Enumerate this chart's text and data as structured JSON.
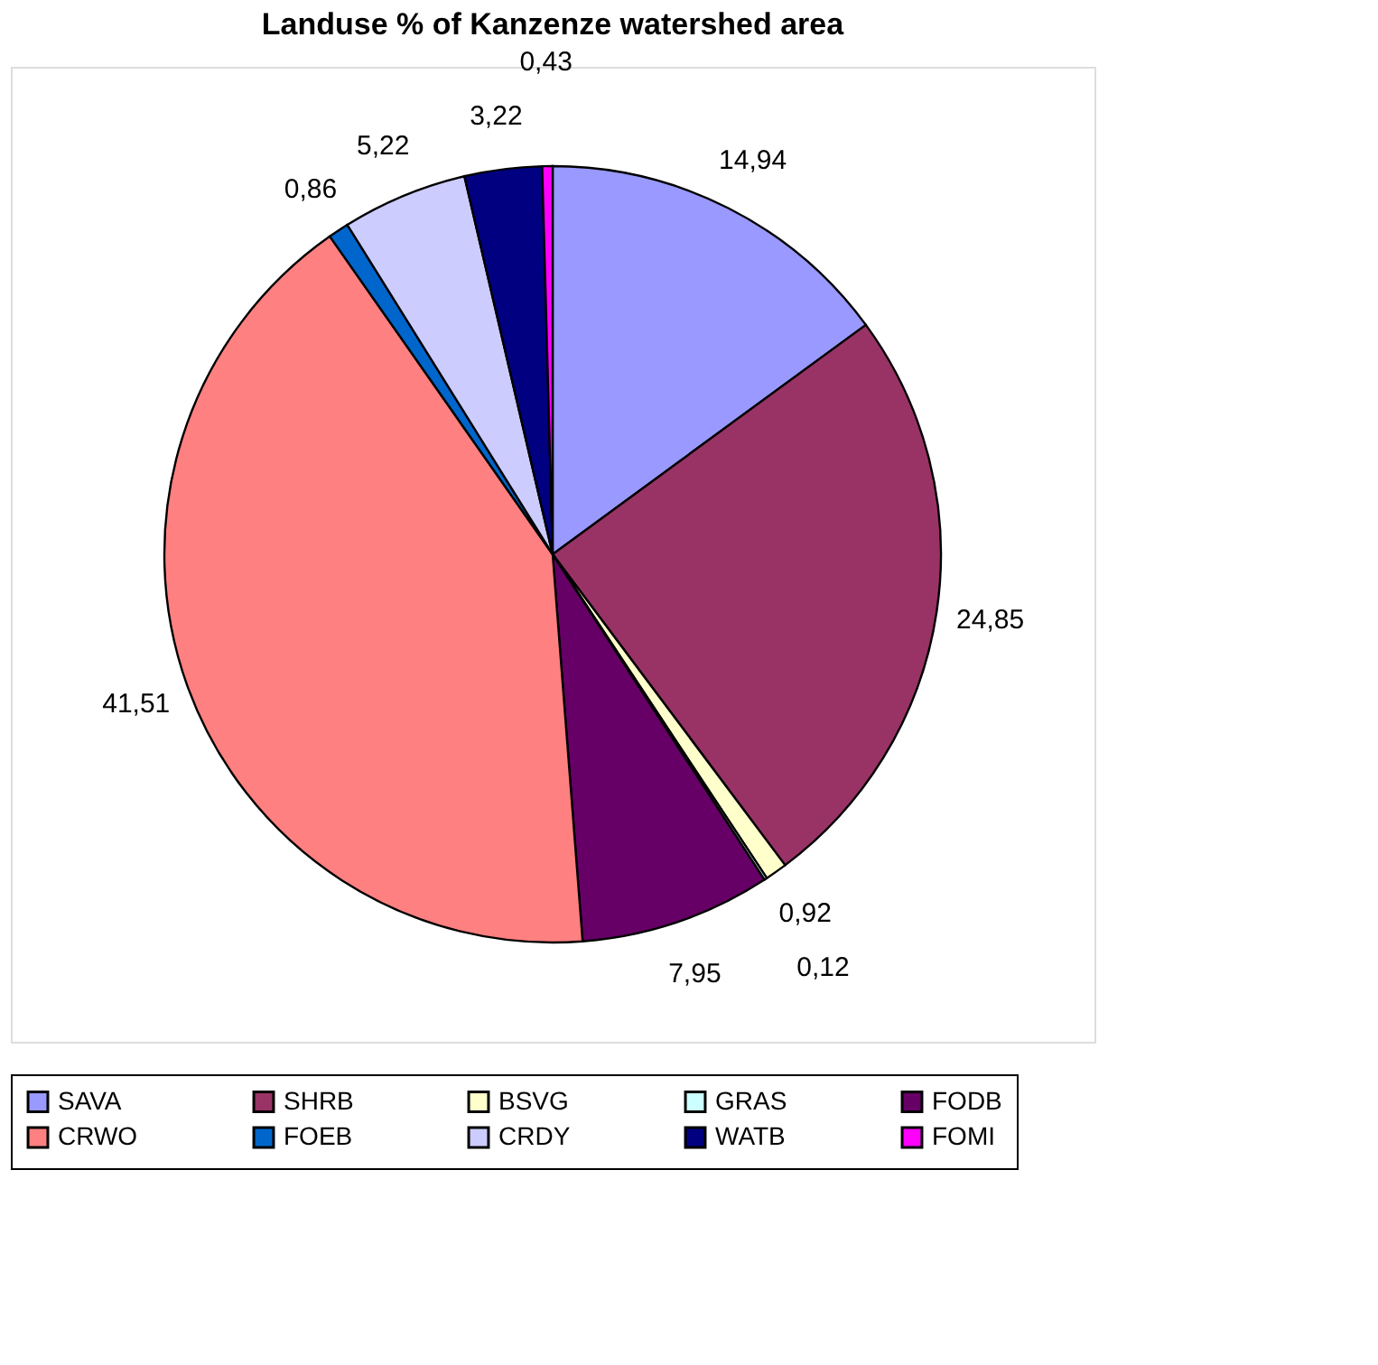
{
  "chart_data": {
    "type": "pie",
    "title": "Landuse % of Kanzenze watershed area",
    "categories": [
      "SAVA",
      "SHRB",
      "BSVG",
      "GRAS",
      "FODB",
      "CRWO",
      "FOEB",
      "CRDY",
      "WATB",
      "FOMI"
    ],
    "values": [
      14.94,
      24.85,
      0.92,
      0.12,
      7.95,
      41.51,
      0.86,
      5.22,
      3.22,
      0.43
    ],
    "colors": [
      "#9999ff",
      "#993366",
      "#ffffcc",
      "#ccffff",
      "#660066",
      "#ff8080",
      "#0066cc",
      "#ccccff",
      "#000080",
      "#ff00ff"
    ],
    "value_labels": [
      "14,94",
      "24,85",
      "0,92",
      "0,12",
      "7,95",
      "41,51",
      "0,86",
      "5,22",
      "3,22",
      "0,43"
    ],
    "legend": "bottom"
  }
}
